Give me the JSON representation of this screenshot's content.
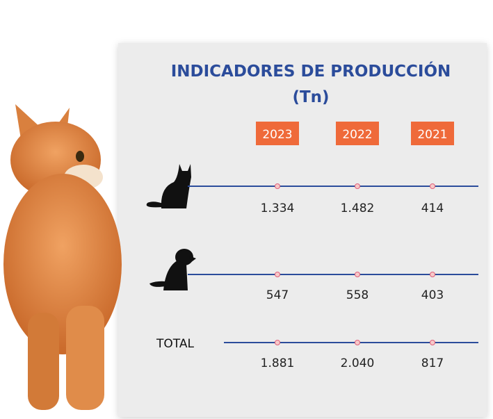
{
  "header": {
    "title": "INDICADORES DE PRODUCCIÓN",
    "unit": "(Tn)"
  },
  "years": [
    "2023",
    "2022",
    "2021"
  ],
  "rows": [
    {
      "values": [
        "1.334",
        "1.482",
        "414"
      ]
    },
    {
      "values": [
        "547",
        "558",
        "403"
      ]
    },
    {
      "label": "TOTAL",
      "values": [
        "1.881",
        "2.040",
        "817"
      ]
    }
  ]
}
